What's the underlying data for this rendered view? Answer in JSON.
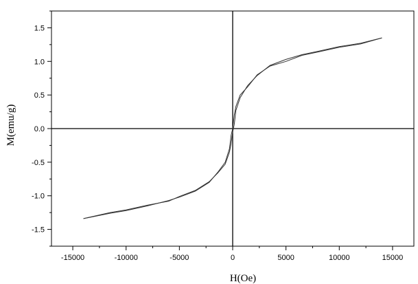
{
  "chart_data": {
    "type": "line",
    "title": "",
    "xlabel": "H(Oe)",
    "ylabel": "M(emu/g)",
    "xlim": [
      -17000,
      17000
    ],
    "ylim": [
      -1.75,
      1.75
    ],
    "x_ticks": [
      -15000,
      -10000,
      -5000,
      0,
      5000,
      10000,
      15000
    ],
    "x_tick_labels": [
      "-15000",
      "-10000",
      "-5000",
      "0",
      "5000",
      "10000",
      "15000"
    ],
    "y_ticks": [
      -1.5,
      -1.0,
      -0.5,
      0.0,
      0.5,
      1.0,
      1.5
    ],
    "y_tick_labels": [
      "-1.5",
      "-1.0",
      "-0.5",
      "0.0",
      "0.5",
      "1.0",
      "1.5"
    ],
    "grid": false,
    "zero_lines": true,
    "line_color": "#333333",
    "series": [
      {
        "x": [
          -14000,
          -11500,
          -10000,
          -8000,
          -6000,
          -5000,
          -3500,
          -2200,
          -1400,
          -700,
          -300,
          -150,
          0,
          150,
          300,
          700,
          1400,
          2300,
          3500,
          5000,
          6500,
          8000,
          10000,
          12000,
          14000
        ],
        "y": [
          -1.34,
          -1.26,
          -1.22,
          -1.15,
          -1.07,
          -1.02,
          -0.93,
          -0.8,
          -0.65,
          -0.5,
          -0.3,
          -0.1,
          0.0,
          0.2,
          0.33,
          0.5,
          0.62,
          0.8,
          0.93,
          1.0,
          1.09,
          1.14,
          1.21,
          1.26,
          1.35
        ]
      },
      {
        "x": [
          14000,
          12000,
          10000,
          8000,
          6500,
          5000,
          3500,
          2300,
          1400,
          700,
          300,
          150,
          0,
          -150,
          -300,
          -700,
          -1400,
          -2200,
          -3500,
          -5000,
          -6000,
          -8000,
          -10000,
          -11500,
          -14000
        ],
        "y": [
          1.35,
          1.27,
          1.22,
          1.15,
          1.1,
          1.03,
          0.94,
          0.79,
          0.64,
          0.46,
          0.27,
          0.06,
          -0.05,
          -0.22,
          -0.35,
          -0.53,
          -0.66,
          -0.79,
          -0.92,
          -1.01,
          -1.08,
          -1.14,
          -1.21,
          -1.25,
          -1.34
        ]
      }
    ]
  }
}
